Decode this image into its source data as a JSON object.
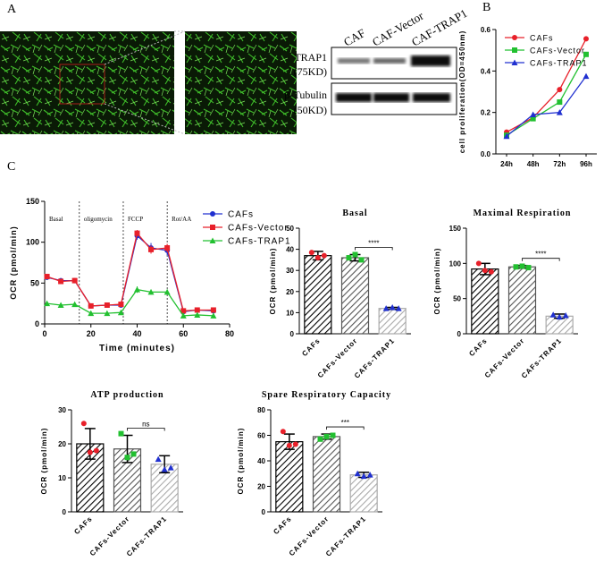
{
  "panels": {
    "a": "A",
    "b": "B",
    "c": "C"
  },
  "blot": {
    "lanes": [
      "CAF",
      "CAF-Vector",
      "CAF-TRAP1"
    ],
    "rows": [
      {
        "name": "TRAP1",
        "size": "(75KD)"
      },
      {
        "name": "β-Tubulin",
        "size": "(50KD)"
      }
    ]
  },
  "chart_data": [
    {
      "type": "line",
      "ylabel": "cell proliferation(OD=450nm)",
      "categories": [
        "24h",
        "48h",
        "72h",
        "96h"
      ],
      "ylim": [
        0,
        0.6
      ],
      "yticks": [
        {
          "value": 0,
          "label": "0.0"
        },
        0.2,
        0.4,
        0.6
      ],
      "legend": "upper left",
      "series": [
        {
          "name": "CAFs",
          "color": "#e8202a",
          "marker": "circle",
          "values": [
            0.105,
            0.175,
            0.31,
            0.555
          ]
        },
        {
          "name": "CAFs-Vector",
          "color": "#22c030",
          "marker": "square",
          "values": [
            0.09,
            0.17,
            0.25,
            0.48
          ]
        },
        {
          "name": "CAFs-TRAP1",
          "color": "#2030d0",
          "marker": "triangle",
          "values": [
            0.085,
            0.19,
            0.2,
            0.375
          ]
        }
      ]
    },
    {
      "type": "line",
      "xlabel": "Time (minutes)",
      "ylabel": "OCR (pmol/min)",
      "x": [
        1,
        7,
        13,
        20,
        27,
        33,
        40,
        46,
        53,
        60,
        66,
        73
      ],
      "xlim": [
        0,
        80
      ],
      "xticks": [
        0,
        20,
        40,
        60,
        80
      ],
      "ylim": [
        0,
        150
      ],
      "yticks": [
        0,
        50,
        100,
        150
      ],
      "legend": "upper right",
      "phases": [
        "Basal",
        "oligomycin",
        "FCCP",
        "Rot/AA"
      ],
      "phase_boundaries": [
        15,
        34,
        53
      ],
      "series": [
        {
          "name": "CAFs",
          "color": "#2030d0",
          "marker": "circle",
          "values": [
            57,
            53,
            53,
            22,
            23,
            23,
            108,
            93,
            90,
            15,
            17,
            16
          ],
          "errors": [
            2,
            1.5,
            1.5,
            1,
            1,
            1,
            5,
            6,
            6,
            1,
            1,
            1
          ]
        },
        {
          "name": "CAFs-Vector",
          "color": "#e8202a",
          "marker": "square",
          "values": [
            58,
            52,
            53,
            22,
            23,
            24,
            111,
            91,
            93,
            16,
            17,
            17
          ],
          "errors": [
            2,
            1.5,
            1.5,
            1,
            1,
            1,
            4,
            5,
            5,
            1,
            1,
            1
          ]
        },
        {
          "name": "CAFs-TRAP1",
          "color": "#22c030",
          "marker": "triangle",
          "values": [
            25,
            23,
            24,
            13,
            13,
            14,
            42,
            39,
            39,
            10,
            11,
            10
          ],
          "errors": [
            1,
            1,
            1,
            1,
            1,
            1,
            4,
            3,
            3,
            1,
            1,
            1
          ]
        }
      ]
    },
    {
      "type": "bar",
      "title": "Basal",
      "ylabel": "OCR (pmol/min)",
      "categories": [
        "CAFs",
        "CAFs-Vector",
        "CAFs-TRAP1"
      ],
      "values": [
        37,
        36,
        12
      ],
      "errors": [
        2,
        1.5,
        0.5
      ],
      "points": [
        [
          38.5,
          36,
          37
        ],
        [
          36,
          37.5,
          35
        ],
        [
          12,
          12.5,
          12
        ]
      ],
      "colors": [
        "#000000",
        "#555555",
        "#aaaaaa"
      ],
      "point_colors": [
        "#e8202a",
        "#22c030",
        "#2030d0"
      ],
      "ylim": [
        0,
        50
      ],
      "yticks": [
        0,
        10,
        20,
        30,
        40,
        50
      ],
      "significance": "****"
    },
    {
      "type": "bar",
      "title": "Maximal Respiration",
      "ylabel": "OCR (pmol/min)",
      "categories": [
        "CAFs",
        "CAFs-Vector",
        "CAFs-TRAP1"
      ],
      "values": [
        92,
        95,
        25
      ],
      "errors": [
        8,
        2,
        3
      ],
      "points": [
        [
          100,
          90,
          88
        ],
        [
          95,
          96,
          94
        ],
        [
          27,
          24,
          26
        ]
      ],
      "colors": [
        "#000000",
        "#555555",
        "#aaaaaa"
      ],
      "point_colors": [
        "#e8202a",
        "#22c030",
        "#2030d0"
      ],
      "ylim": [
        0,
        150
      ],
      "yticks": [
        0,
        50,
        100,
        150
      ],
      "significance": "****"
    },
    {
      "type": "bar",
      "title": "ATP production",
      "ylabel": "OCR (pmol/min)",
      "categories": [
        "CAFs",
        "CAFs-Vector",
        "CAFs-TRAP1"
      ],
      "values": [
        20,
        18.5,
        14
      ],
      "errors": [
        4.5,
        4,
        2.5
      ],
      "points": [
        [
          26,
          17.5,
          18
        ],
        [
          23,
          16,
          17
        ],
        [
          15.5,
          12.5,
          13
        ]
      ],
      "colors": [
        "#000000",
        "#555555",
        "#aaaaaa"
      ],
      "point_colors": [
        "#e8202a",
        "#22c030",
        "#2030d0"
      ],
      "ylim": [
        0,
        30
      ],
      "yticks": [
        0,
        10,
        20,
        30
      ],
      "significance": "ns"
    },
    {
      "type": "bar",
      "title": "Spare Respiratory Capacity",
      "ylabel": "OCR (pmol/min)",
      "categories": [
        "CAFs",
        "CAFs-Vector",
        "CAFs-TRAP1"
      ],
      "values": [
        55,
        59,
        29
      ],
      "errors": [
        6,
        2,
        2
      ],
      "points": [
        [
          63,
          52,
          53
        ],
        [
          57,
          59,
          60
        ],
        [
          30,
          28,
          29
        ]
      ],
      "colors": [
        "#000000",
        "#555555",
        "#aaaaaa"
      ],
      "point_colors": [
        "#e8202a",
        "#22c030",
        "#2030d0"
      ],
      "ylim": [
        0,
        80
      ],
      "yticks": [
        0,
        20,
        40,
        60,
        80
      ],
      "significance": "***"
    }
  ]
}
